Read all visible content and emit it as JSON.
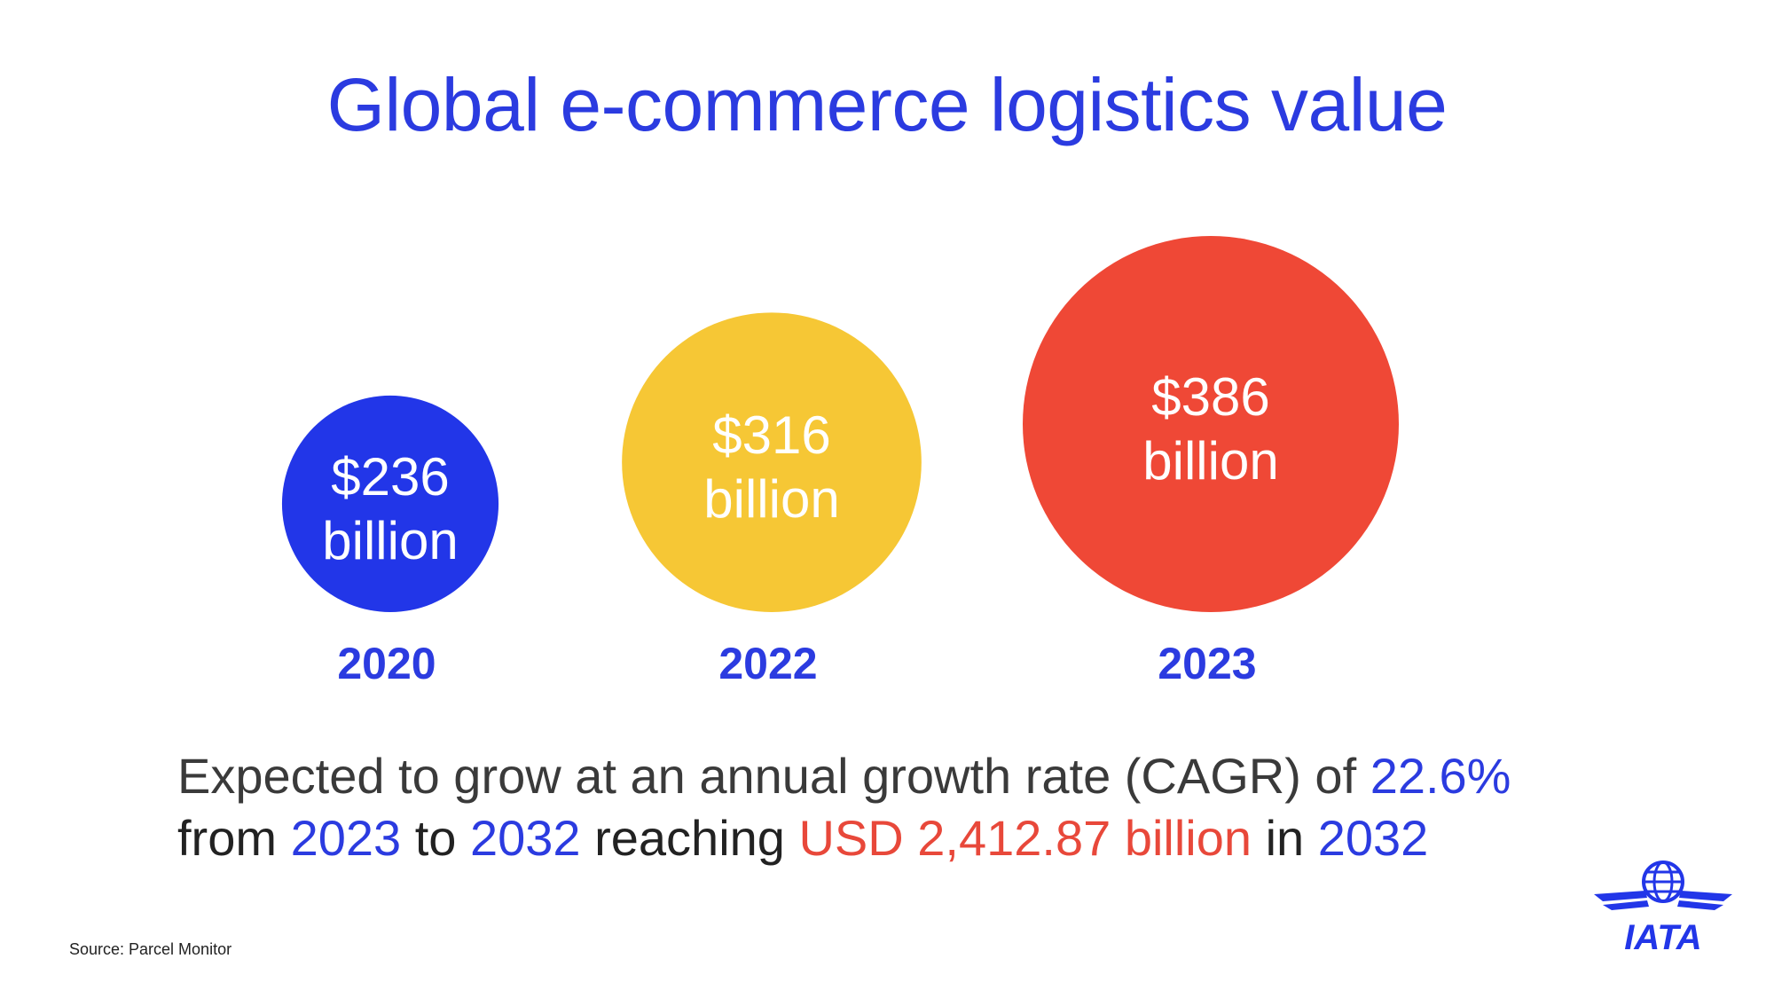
{
  "chart_data": {
    "type": "bubble",
    "title": "Global e-commerce logistics value",
    "categories": [
      "2020",
      "2022",
      "2023"
    ],
    "values": [
      236,
      316,
      386
    ],
    "value_labels": [
      {
        "amount": "$236",
        "unit": "billion"
      },
      {
        "amount": "$316",
        "unit": "billion"
      },
      {
        "amount": "$386",
        "unit": "billion"
      }
    ],
    "colors": [
      "#2236e8",
      "#f6c735",
      "#ef4836"
    ]
  },
  "summary": {
    "line1_text": "Expected to grow at an annual growth rate (CAGR) of ",
    "cagr": "22.6%",
    "line2_from": "from ",
    "start_year": "2023",
    "line2_to": " to ",
    "end_year": "2032",
    "line2_reaching": " reaching ",
    "target_value": "USD 2,412.87 billion",
    "line2_in": " in ",
    "target_year": "2032"
  },
  "footer": {
    "source": "Source: Parcel Monitor",
    "logo_text": "IATA",
    "logo_icon": "iata-globe-wings-logo",
    "logo_color": "#2236e8"
  }
}
